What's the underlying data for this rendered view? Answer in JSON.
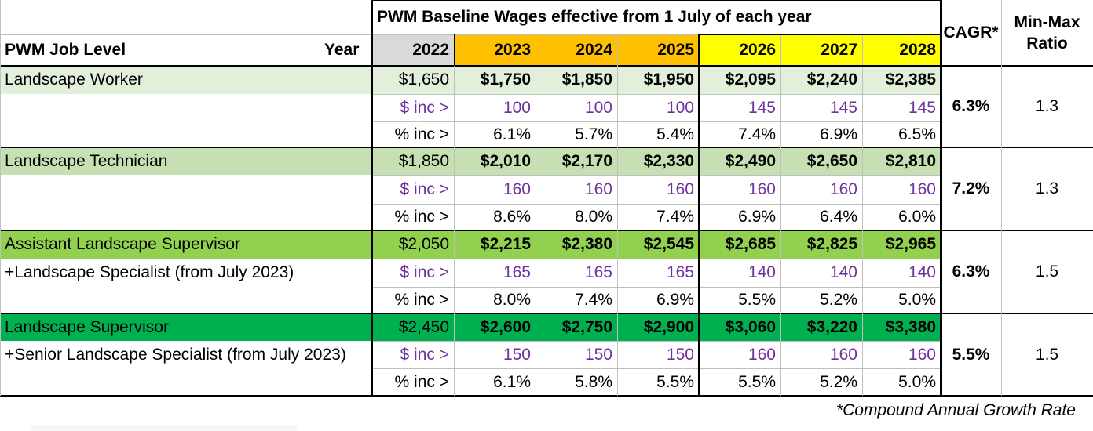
{
  "header": {
    "span_title": "PWM Baseline Wages effective from 1 July of each year",
    "job_level_label": "PWM Job Level",
    "year_label": "Year",
    "years": [
      "2022",
      "2023",
      "2024",
      "2025",
      "2026",
      "2027",
      "2028"
    ],
    "cagr_label": "CAGR*",
    "ratio_label_line1": "Min-Max",
    "ratio_label_line2": "Ratio"
  },
  "row_labels": {
    "dollar_inc": "$ inc >",
    "pct_inc": "% inc >"
  },
  "colors": {
    "gray_header": "#D9D9D9",
    "orange_header": "#FFC000",
    "yellow_header": "#FFFF00",
    "level_colors": [
      "#E2EFDA",
      "#C6E0B4",
      "#92D050",
      "#00B050"
    ],
    "purple_text": "#7030A0"
  },
  "levels": [
    {
      "name": "Landscape Worker",
      "subtitle": "",
      "wages": [
        "$1,650",
        "$1,750",
        "$1,850",
        "$1,950",
        "$2,095",
        "$2,240",
        "$2,385"
      ],
      "dollar_inc": [
        "100",
        "100",
        "100",
        "145",
        "145",
        "145"
      ],
      "pct_inc": [
        "6.1%",
        "5.7%",
        "5.4%",
        "7.4%",
        "6.9%",
        "6.5%"
      ],
      "cagr": "6.3%",
      "ratio": "1.3"
    },
    {
      "name": "Landscape Technician",
      "subtitle": "",
      "wages": [
        "$1,850",
        "$2,010",
        "$2,170",
        "$2,330",
        "$2,490",
        "$2,650",
        "$2,810"
      ],
      "dollar_inc": [
        "160",
        "160",
        "160",
        "160",
        "160",
        "160"
      ],
      "pct_inc": [
        "8.6%",
        "8.0%",
        "7.4%",
        "6.9%",
        "6.4%",
        "6.0%"
      ],
      "cagr": "7.2%",
      "ratio": "1.3"
    },
    {
      "name": "Assistant Landscape Supervisor",
      "subtitle": "+Landscape Specialist (from July 2023)",
      "wages": [
        "$2,050",
        "$2,215",
        "$2,380",
        "$2,545",
        "$2,685",
        "$2,825",
        "$2,965"
      ],
      "dollar_inc": [
        "165",
        "165",
        "165",
        "140",
        "140",
        "140"
      ],
      "pct_inc": [
        "8.0%",
        "7.4%",
        "6.9%",
        "5.5%",
        "5.2%",
        "5.0%"
      ],
      "cagr": "6.3%",
      "ratio": "1.5"
    },
    {
      "name": "Landscape Supervisor",
      "subtitle": "+Senior Landscape Specialist (from July 2023)",
      "wages": [
        "$2,450",
        "$2,600",
        "$2,750",
        "$2,900",
        "$3,060",
        "$3,220",
        "$3,380"
      ],
      "dollar_inc": [
        "150",
        "150",
        "150",
        "160",
        "160",
        "160"
      ],
      "pct_inc": [
        "6.1%",
        "5.8%",
        "5.5%",
        "5.5%",
        "5.2%",
        "5.0%"
      ],
      "cagr": "5.5%",
      "ratio": "1.5"
    }
  ],
  "footnote": "*Compound Annual Growth Rate"
}
